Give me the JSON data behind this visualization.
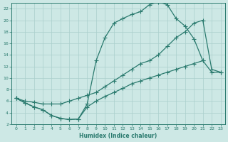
{
  "bg_color": "#cde8e5",
  "grid_color": "#aacfcc",
  "line_color": "#2a7a6e",
  "xlabel": "Humidex (Indice chaleur)",
  "xlim": [
    -0.5,
    23.5
  ],
  "ylim": [
    2,
    23
  ],
  "yticks": [
    2,
    4,
    6,
    8,
    10,
    12,
    14,
    16,
    18,
    20,
    22
  ],
  "xticks": [
    0,
    1,
    2,
    3,
    4,
    5,
    6,
    7,
    8,
    9,
    10,
    11,
    12,
    13,
    14,
    15,
    16,
    17,
    18,
    19,
    20,
    21,
    22,
    23
  ],
  "curve1_x": [
    0,
    1,
    2,
    3,
    4,
    5,
    6,
    7,
    8,
    9,
    10,
    11,
    12,
    13,
    14,
    15,
    16,
    17,
    18,
    19,
    20,
    21
  ],
  "curve1_y": [
    6.5,
    5.7,
    5.0,
    4.5,
    3.5,
    3.0,
    2.8,
    2.9,
    5.5,
    13.0,
    17.0,
    19.5,
    20.3,
    21.0,
    21.5,
    22.7,
    23.2,
    22.7,
    20.3,
    19.0,
    16.8,
    13.0
  ],
  "curve2_x": [
    0,
    1,
    2,
    3,
    4,
    5,
    6,
    7,
    8,
    9,
    10,
    11,
    12,
    13,
    14,
    15,
    16,
    17,
    18,
    19,
    20,
    21,
    22,
    23
  ],
  "curve2_y": [
    6.5,
    6.0,
    5.8,
    5.5,
    5.5,
    5.5,
    6.0,
    6.5,
    7.0,
    7.5,
    8.5,
    9.5,
    10.5,
    11.5,
    12.5,
    13.0,
    14.0,
    15.5,
    17.0,
    18.0,
    19.5,
    20.0,
    11.5,
    11.0
  ],
  "curve3_x": [
    0,
    1,
    2,
    3,
    4,
    5,
    6,
    7,
    8,
    9,
    10,
    11,
    12,
    13,
    14,
    15,
    16,
    17,
    18,
    19,
    20,
    21,
    22,
    23
  ],
  "curve3_y": [
    6.5,
    5.7,
    5.0,
    4.5,
    3.5,
    3.0,
    2.8,
    2.9,
    5.0,
    6.0,
    6.8,
    7.5,
    8.2,
    9.0,
    9.5,
    10.0,
    10.5,
    11.0,
    11.5,
    12.0,
    12.5,
    13.0,
    11.0,
    11.0
  ]
}
